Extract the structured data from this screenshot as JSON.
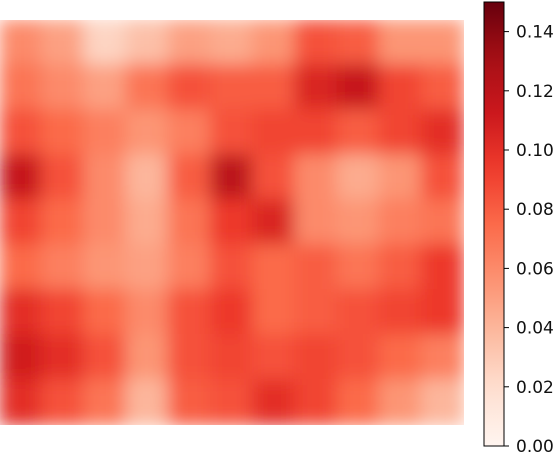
{
  "chart_data": {
    "type": "heatmap",
    "title": "",
    "xlabel": "",
    "ylabel": "",
    "colormap": "Reds",
    "vmin": 0.0,
    "vmax": 0.15,
    "colorbar": {
      "ticks": [
        0.0,
        0.02,
        0.04,
        0.06,
        0.08,
        0.1,
        0.12,
        0.14
      ],
      "tick_labels": [
        "0.00",
        "0.02",
        "0.04",
        "0.06",
        "0.08",
        "0.10",
        "0.12",
        "0.14"
      ]
    },
    "interpolation": "smooth",
    "grid": [
      [
        0.06,
        0.05,
        0.025,
        0.035,
        0.05,
        0.045,
        0.055,
        0.085,
        0.08,
        0.055,
        0.055
      ],
      [
        0.07,
        0.06,
        0.05,
        0.07,
        0.085,
        0.08,
        0.08,
        0.105,
        0.115,
        0.09,
        0.08
      ],
      [
        0.085,
        0.075,
        0.065,
        0.055,
        0.065,
        0.085,
        0.09,
        0.09,
        0.08,
        0.09,
        0.1
      ],
      [
        0.115,
        0.085,
        0.06,
        0.04,
        0.08,
        0.12,
        0.085,
        0.06,
        0.045,
        0.055,
        0.085
      ],
      [
        0.09,
        0.075,
        0.06,
        0.045,
        0.07,
        0.095,
        0.105,
        0.06,
        0.055,
        0.065,
        0.07
      ],
      [
        0.075,
        0.065,
        0.055,
        0.05,
        0.065,
        0.085,
        0.075,
        0.08,
        0.07,
        0.08,
        0.095
      ],
      [
        0.1,
        0.09,
        0.075,
        0.06,
        0.085,
        0.095,
        0.075,
        0.08,
        0.085,
        0.09,
        0.095
      ],
      [
        0.11,
        0.1,
        0.085,
        0.055,
        0.085,
        0.09,
        0.085,
        0.09,
        0.085,
        0.075,
        0.065
      ],
      [
        0.1,
        0.085,
        0.07,
        0.04,
        0.08,
        0.085,
        0.1,
        0.09,
        0.075,
        0.055,
        0.04
      ]
    ]
  }
}
